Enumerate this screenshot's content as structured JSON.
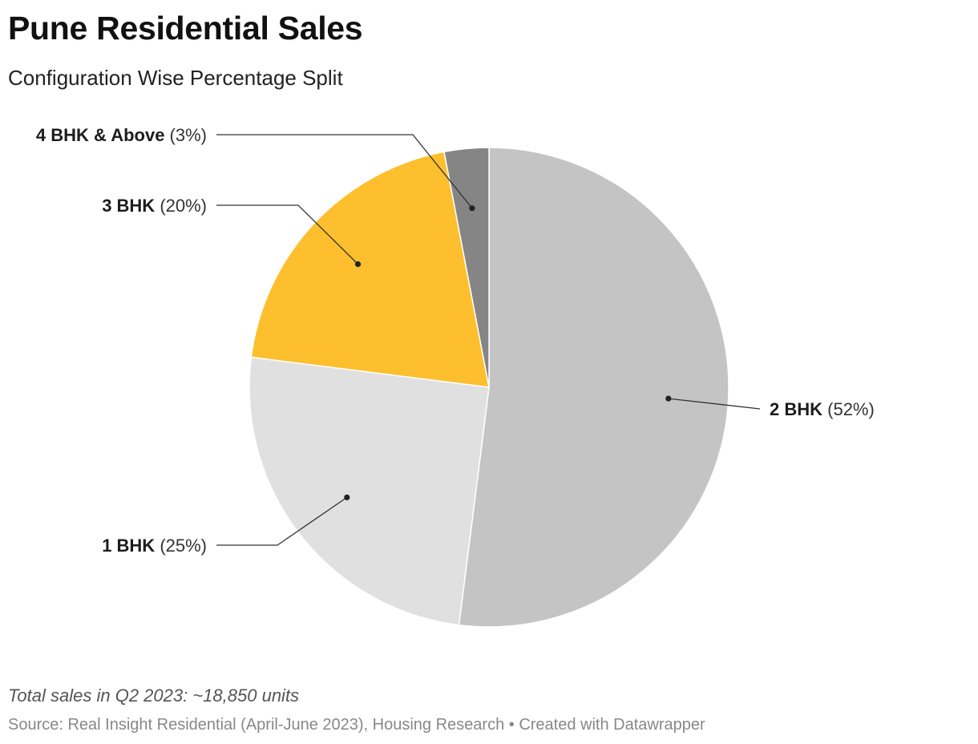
{
  "header": {
    "title": "Pune Residential Sales",
    "subtitle": "Configuration Wise Percentage Split"
  },
  "chart_data": {
    "type": "pie",
    "title": "Pune Residential Sales",
    "subtitle": "Configuration Wise Percentage Split",
    "categories": [
      "2 BHK",
      "1 BHK",
      "3 BHK",
      "4 BHK & Above"
    ],
    "values": [
      52,
      25,
      20,
      3
    ],
    "unit": "%",
    "value_labels": [
      "(52%)",
      "(25%)",
      "(20%)",
      "(3%)"
    ],
    "colors": [
      "#c4c4c4",
      "#e0e0e0",
      "#fdbf2d",
      "#858585"
    ],
    "start": "12 o'clock",
    "direction": "clockwise"
  },
  "footer": {
    "note": "Total sales in Q2 2023: ~18,850 units",
    "source": "Source: Real Insight Residential (April-June 2023), Housing Research • Created with Datawrapper"
  }
}
